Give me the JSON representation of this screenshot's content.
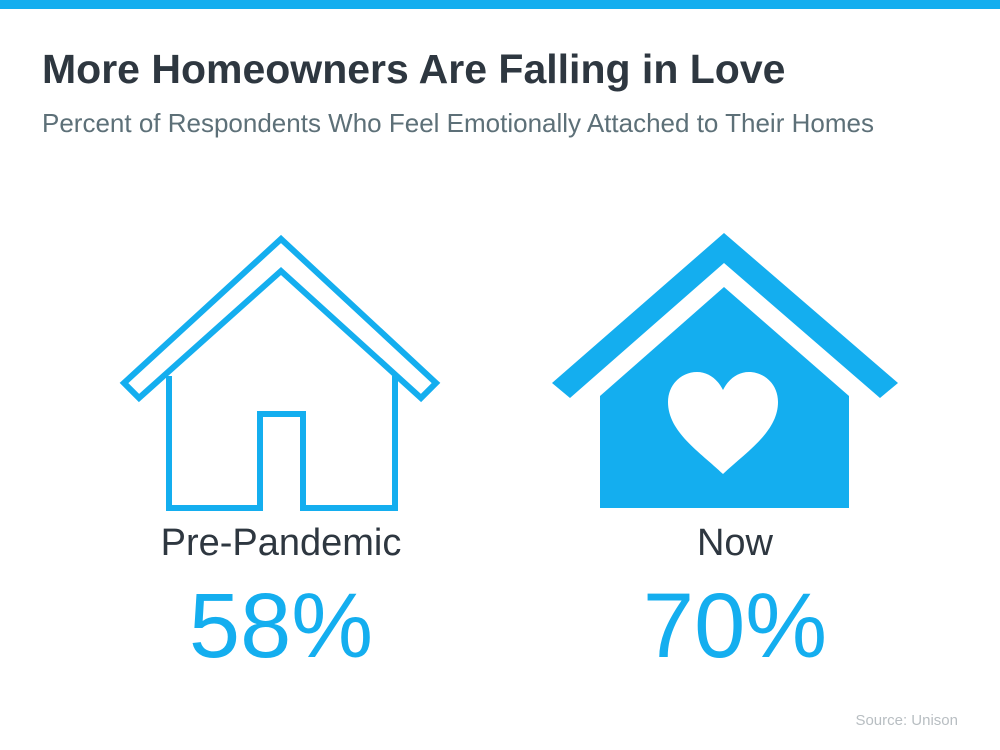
{
  "colors": {
    "accent": "#14AEEF",
    "title": "#2E3740",
    "subtitle": "#5D7078"
  },
  "header": {
    "title": "More Homeowners Are Falling in Love",
    "subtitle": "Percent of Respondents Who Feel Emotionally Attached to Their Homes"
  },
  "items": [
    {
      "label": "Pre-Pandemic",
      "value": "58%",
      "icon": "house-outline-icon"
    },
    {
      "label": "Now",
      "value": "70%",
      "icon": "house-heart-icon"
    }
  ],
  "source": "Source: Unison"
}
